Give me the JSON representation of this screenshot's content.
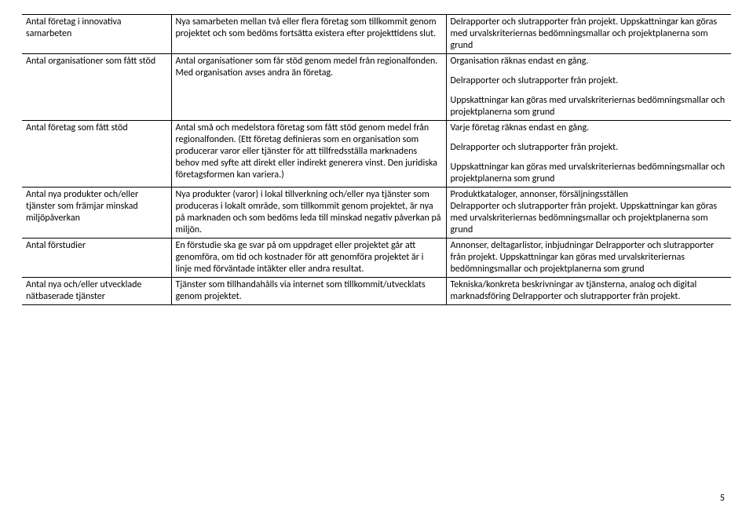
{
  "table": {
    "rows": [
      {
        "col1": "Antal företag i innovativa samarbeten",
        "col2": "Nya samarbeten mellan två eller flera företag som tillkommit genom projektet och som bedöms fortsätta existera efter projekttidens slut.",
        "col3": "Delrapporter och slutrapporter från projekt. Uppskattningar kan göras med urvalskriteriernas bedömningsmallar och projektplanerna som grund"
      },
      {
        "col1": "Antal organisationer som fått stöd",
        "col2": "Antal organisationer som får stöd genom medel från regionalfonden. Med organisation avses andra än företag.",
        "col3_a": "Organisation räknas endast en gång.",
        "col3_b": "Delrapporter och slutrapporter från projekt.",
        "col3_c": "Uppskattningar kan göras med urvalskriteriernas bedömningsmallar och projektplanerna som grund"
      },
      {
        "col1": "Antal företag som fått stöd",
        "col2": "Antal små och medelstora företag som fått stöd genom medel från regionalfonden. (Ett företag definieras som en organisation som producerar varor eller tjänster för att tillfredsställa marknadens behov med syfte att direkt eller indirekt generera vinst. Den juridiska företagsformen kan variera.)",
        "col3_a": "Varje företag räknas endast en gång.",
        "col3_b": "Delrapporter och slutrapporter från projekt.",
        "col3_c": "Uppskattningar kan göras med urvalskriteriernas bedömningsmallar och projektplanerna som grund"
      },
      {
        "col1": "Antal nya produkter och/eller tjänster som främjar minskad miljöpåverkan",
        "col2": "Nya produkter (varor) i lokal tillverkning och/eller nya tjänster som produceras i lokalt område, som tillkommit genom projektet, är nya på marknaden och som bedöms leda till minskad negativ påverkan på miljön.",
        "col3": "Produktkataloger, annonser, försäljningsställen\nDelrapporter och slutrapporter från projekt. Uppskattningar kan göras med urvalskriteriernas bedömningsmallar och projektplanerna som grund"
      },
      {
        "col1": "Antal förstudier",
        "col2": "En förstudie ska ge svar på om uppdraget eller projektet går att genomföra, om tid och kostnader för att genomföra projektet är i linje med förväntade intäkter eller andra resultat.",
        "col3": "Annonser, deltagarlistor, inbjudningar Delrapporter och slutrapporter från projekt. Uppskattningar kan göras med urvalskriteriernas bedömningsmallar och projektplanerna som grund"
      },
      {
        "col1": "Antal nya och/eller utvecklade nätbaserade tjänster",
        "col2": "Tjänster som tillhandahålls via internet som tillkommit/utvecklats genom projektet.",
        "col3": "Tekniska/konkreta beskrivningar av tjänsterna, analog och digital marknadsföring Delrapporter och slutrapporter från projekt."
      }
    ]
  },
  "pagenum": "5"
}
